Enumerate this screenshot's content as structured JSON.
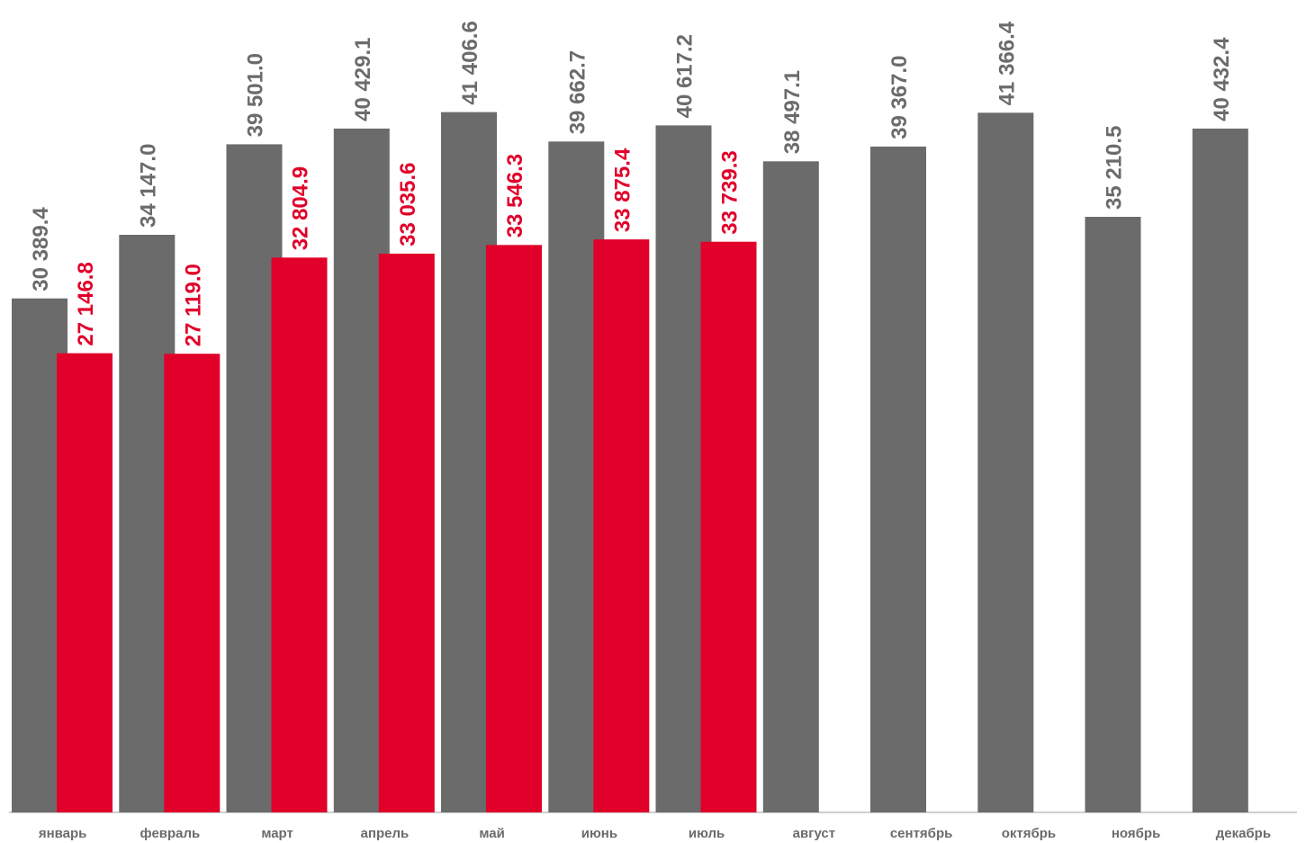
{
  "chart_data": {
    "type": "bar",
    "title": "",
    "xlabel": "",
    "ylabel": "",
    "ylim": [
      0,
      42000
    ],
    "grid": false,
    "legend": "none",
    "categories": [
      "январь",
      "февраль",
      "март",
      "апрель",
      "май",
      "июнь",
      "июль",
      "август",
      "сентябрь",
      "октябрь",
      "ноябрь",
      "декабрь"
    ],
    "series": [
      {
        "color": "#6b6b6b",
        "values": [
          30389.4,
          34147.0,
          39501.0,
          40429.1,
          41406.6,
          39662.7,
          40617.2,
          38497.1,
          39367.0,
          41366.4,
          35210.5,
          40432.4
        ],
        "labels": [
          "30 389.4",
          "34 147.0",
          "39 501.0",
          "40 429.1",
          "41 406.6",
          "39 662.7",
          "40 617.2",
          "38 497.1",
          "39 367.0",
          "41 366.4",
          "35 210.5",
          "40 432.4"
        ]
      },
      {
        "color": "#e0002a",
        "values": [
          27146.8,
          27119.0,
          32804.9,
          33035.6,
          33546.3,
          33875.4,
          33739.3,
          null,
          null,
          null,
          null,
          null
        ],
        "labels": [
          "27 146.8",
          "27 119.0",
          "32 804.9",
          "33 035.6",
          "33 546.3",
          "33 875.4",
          "33 739.3",
          null,
          null,
          null,
          null,
          null
        ]
      }
    ]
  }
}
